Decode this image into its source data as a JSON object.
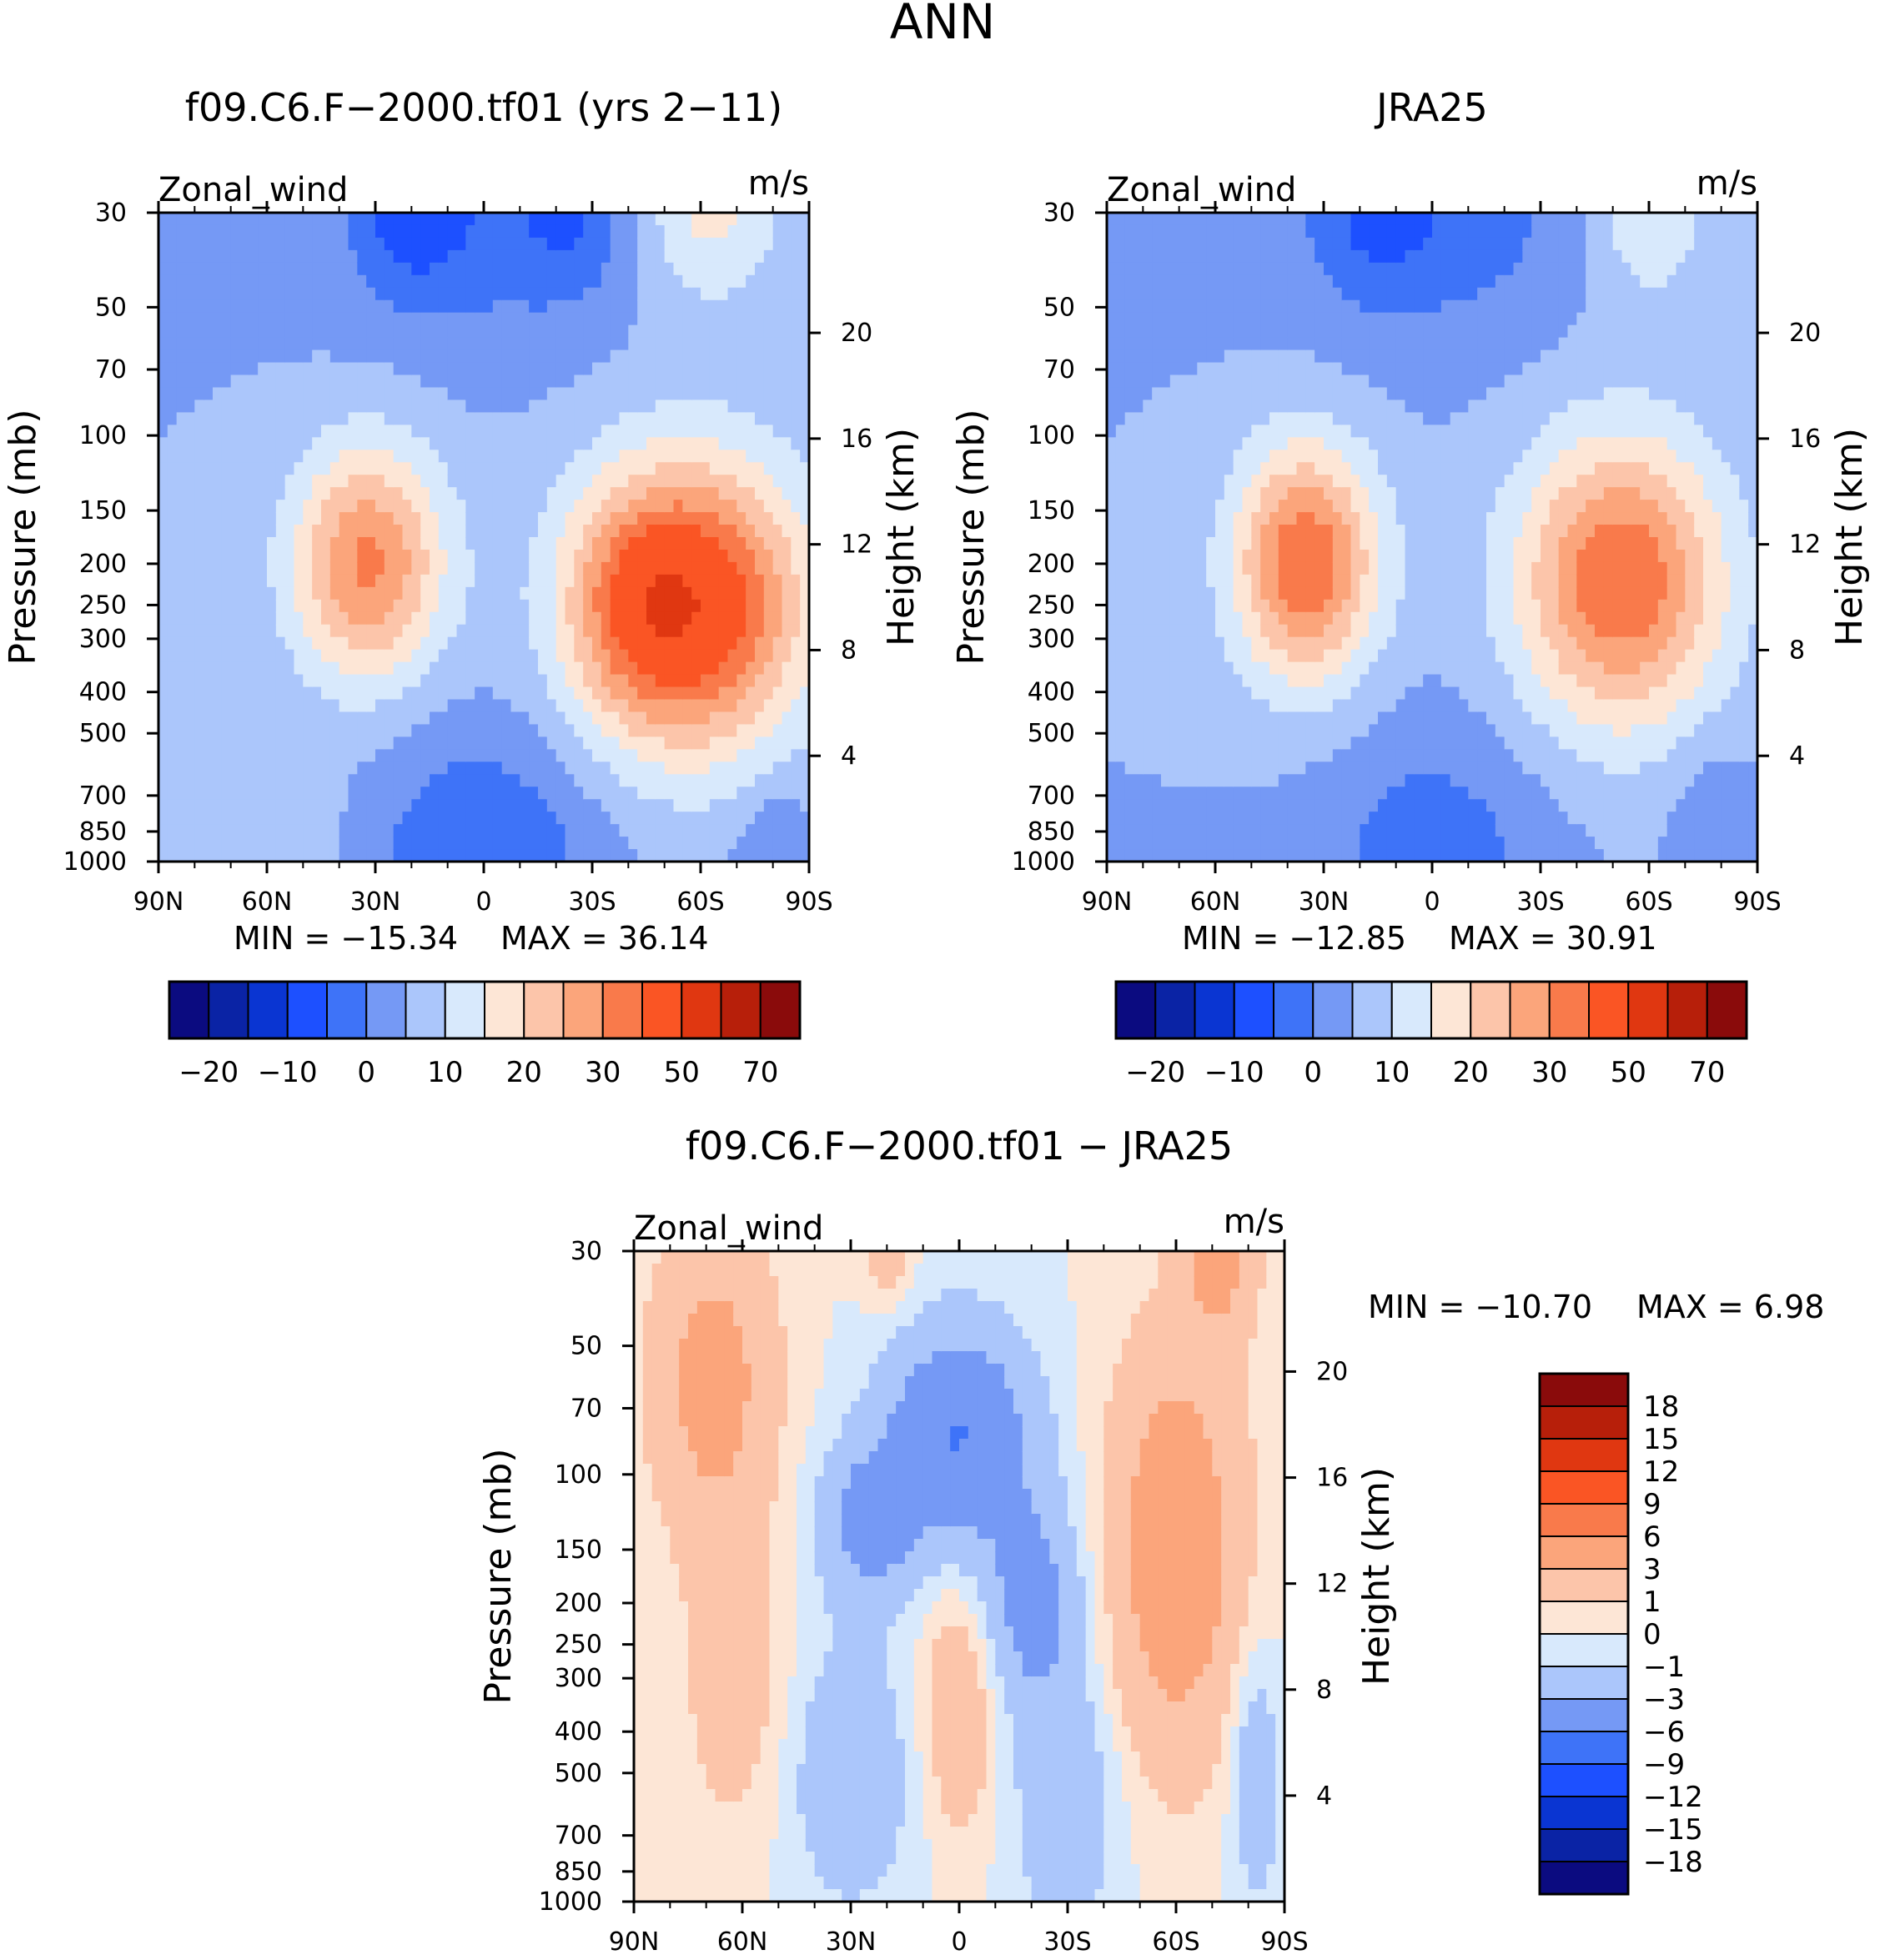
{
  "figure_title": "ANN",
  "chart_data": [
    {
      "type": "heatmap",
      "id": "model",
      "title": "f09.C6.F-2000.tf01 (yrs 2-11)",
      "left_label": "Zonal_wind",
      "right_label": "m/s",
      "ylabel": "Pressure (mb)",
      "ylabel_right": "Height (km)",
      "x_ticks": [
        "90N",
        "60N",
        "30N",
        "0",
        "30S",
        "60S",
        "90S"
      ],
      "y_ticks": [
        "30",
        "50",
        "70",
        "100",
        "150",
        "200",
        "250",
        "300",
        "400",
        "500",
        "700",
        "850",
        "1000"
      ],
      "y_ticks_right": [
        "20",
        "16",
        "12",
        "8",
        "4"
      ],
      "stats": {
        "min_label": "MIN =",
        "min": "-15.34",
        "max_label": "MAX =",
        "max": "36.14"
      },
      "color_levels": [
        -25,
        -20,
        -15,
        -10,
        -5,
        0,
        5,
        10,
        15,
        20,
        25,
        30,
        40,
        50,
        60,
        70
      ],
      "colorbar_labels": [
        "-20",
        "-10",
        "0",
        "10",
        "20",
        "30",
        "50",
        "70"
      ],
      "features": [
        {
          "lat": -57,
          "p": 250,
          "amp": 38,
          "wlat": 22,
          "wlogp": 0.55
        },
        {
          "lat": -40,
          "p": 250,
          "amp": 8,
          "wlat": 12,
          "wlogp": 0.4
        },
        {
          "lat": -62,
          "p": 30,
          "amp": 12,
          "wlat": 14,
          "wlogp": 0.35
        },
        {
          "lat": 32,
          "p": 200,
          "amp": 26,
          "wlat": 15,
          "wlogp": 0.45
        },
        {
          "lat": 0,
          "p": 30,
          "amp": -8,
          "wlat": 30,
          "wlogp": 0.5
        },
        {
          "lat": 20,
          "p": 30,
          "amp": -8,
          "wlat": 10,
          "wlogp": 0.3
        },
        {
          "lat": -25,
          "p": 30,
          "amp": -6,
          "wlat": 10,
          "wlogp": 0.3
        },
        {
          "lat": 0,
          "p": 1000,
          "amp": -10,
          "wlat": 22,
          "wlogp": 0.5
        },
        {
          "lat": -80,
          "p": 1000,
          "amp": -6,
          "wlat": 7,
          "wlogp": 0.3
        },
        {
          "lat": 52,
          "p": 850,
          "amp": 4,
          "wlat": 10,
          "wlogp": 0.3
        }
      ]
    },
    {
      "type": "heatmap",
      "id": "obs",
      "title": "JRA25",
      "left_label": "Zonal_wind",
      "right_label": "m/s",
      "ylabel": "Pressure (mb)",
      "ylabel_right": "Height (km)",
      "x_ticks": [
        "90N",
        "60N",
        "30N",
        "0",
        "30S",
        "60S",
        "90S"
      ],
      "y_ticks": [
        "30",
        "50",
        "70",
        "100",
        "150",
        "200",
        "250",
        "300",
        "400",
        "500",
        "700",
        "850",
        "1000"
      ],
      "y_ticks_right": [
        "20",
        "16",
        "12",
        "8",
        "4"
      ],
      "stats": {
        "min_label": "MIN =",
        "min": "-12.85",
        "max_label": "MAX =",
        "max": "30.91"
      },
      "color_levels": [
        -25,
        -20,
        -15,
        -10,
        -5,
        0,
        5,
        10,
        15,
        20,
        25,
        30,
        40,
        50,
        60,
        70
      ],
      "colorbar_labels": [
        "-20",
        "-10",
        "0",
        "10",
        "20",
        "30",
        "50",
        "70"
      ],
      "features": [
        {
          "lat": -52,
          "p": 220,
          "amp": 30,
          "wlat": 20,
          "wlogp": 0.55
        },
        {
          "lat": -60,
          "p": 30,
          "amp": 10,
          "wlat": 12,
          "wlogp": 0.35
        },
        {
          "lat": 35,
          "p": 200,
          "amp": 30,
          "wlat": 14,
          "wlogp": 0.45
        },
        {
          "lat": 0,
          "p": 30,
          "amp": -8,
          "wlat": 30,
          "wlogp": 0.5
        },
        {
          "lat": 15,
          "p": 30,
          "amp": -6,
          "wlat": 10,
          "wlogp": 0.3
        },
        {
          "lat": 0,
          "p": 1000,
          "amp": -8,
          "wlat": 22,
          "wlogp": 0.5
        },
        {
          "lat": -78,
          "p": 800,
          "amp": -5,
          "wlat": 8,
          "wlogp": 0.3
        }
      ]
    },
    {
      "type": "heatmap",
      "id": "diff",
      "title": "f09.C6.F-2000.tf01 - JRA25",
      "left_label": "Zonal_wind",
      "right_label": "m/s",
      "ylabel": "Pressure (mb)",
      "ylabel_right": "Height (km)",
      "x_ticks": [
        "90N",
        "60N",
        "30N",
        "0",
        "30S",
        "60S",
        "90S"
      ],
      "y_ticks": [
        "30",
        "50",
        "70",
        "100",
        "150",
        "200",
        "250",
        "300",
        "400",
        "500",
        "700",
        "850",
        "1000"
      ],
      "y_ticks_right": [
        "20",
        "16",
        "12",
        "8",
        "4"
      ],
      "stats": {
        "min_label": "MIN =",
        "min": "-10.70",
        "max_label": "MAX =",
        "max": "6.98"
      },
      "color_levels": [
        -21,
        -18,
        -15,
        -12,
        -9,
        -6,
        -3,
        -1,
        0,
        1,
        3,
        6,
        9,
        12,
        15,
        18,
        21
      ],
      "colorbar_labels": [
        "18",
        "15",
        "12",
        "9",
        "6",
        "3",
        "1",
        "0",
        "-1",
        "-3",
        "-6",
        "-9",
        "-12",
        "-15",
        "-18"
      ],
      "features": [
        {
          "lat": 68,
          "p": 60,
          "amp": 4,
          "wlat": 12,
          "wlogp": 0.6
        },
        {
          "lat": 62,
          "p": 300,
          "amp": 2,
          "wlat": 10,
          "wlogp": 0.6
        },
        {
          "lat": -60,
          "p": 150,
          "amp": 5,
          "wlat": 13,
          "wlogp": 0.8
        },
        {
          "lat": -72,
          "p": 30,
          "amp": 4,
          "wlat": 7,
          "wlogp": 0.3
        },
        {
          "lat": 0,
          "p": 350,
          "amp": 3,
          "wlat": 7,
          "wlogp": 0.45
        },
        {
          "lat": 20,
          "p": 30,
          "amp": 2,
          "wlat": 5,
          "wlogp": 0.2
        },
        {
          "lat": 0,
          "p": 80,
          "amp": -6,
          "wlat": 14,
          "wlogp": 0.4
        },
        {
          "lat": 25,
          "p": 130,
          "amp": -4,
          "wlat": 10,
          "wlogp": 0.3
        },
        {
          "lat": -20,
          "p": 200,
          "amp": -4,
          "wlat": 10,
          "wlogp": 0.4
        },
        {
          "lat": 30,
          "p": 500,
          "amp": -2.5,
          "wlat": 12,
          "wlogp": 0.5
        },
        {
          "lat": -30,
          "p": 600,
          "amp": -2.5,
          "wlat": 10,
          "wlogp": 0.5
        },
        {
          "lat": -82,
          "p": 500,
          "amp": -2.5,
          "wlat": 5,
          "wlogp": 0.5
        }
      ]
    }
  ],
  "colors": {
    "diverging": [
      "#0b0b80",
      "#0a23a5",
      "#0a35d2",
      "#1d50ff",
      "#3e73f8",
      "#7599f5",
      "#abc6fb",
      "#d8e9fc",
      "#fde6d6",
      "#fcc5aa",
      "#fba57b",
      "#f97a4b",
      "#fa5524",
      "#e03711",
      "#b71f0a",
      "#8a0b0b"
    ]
  }
}
